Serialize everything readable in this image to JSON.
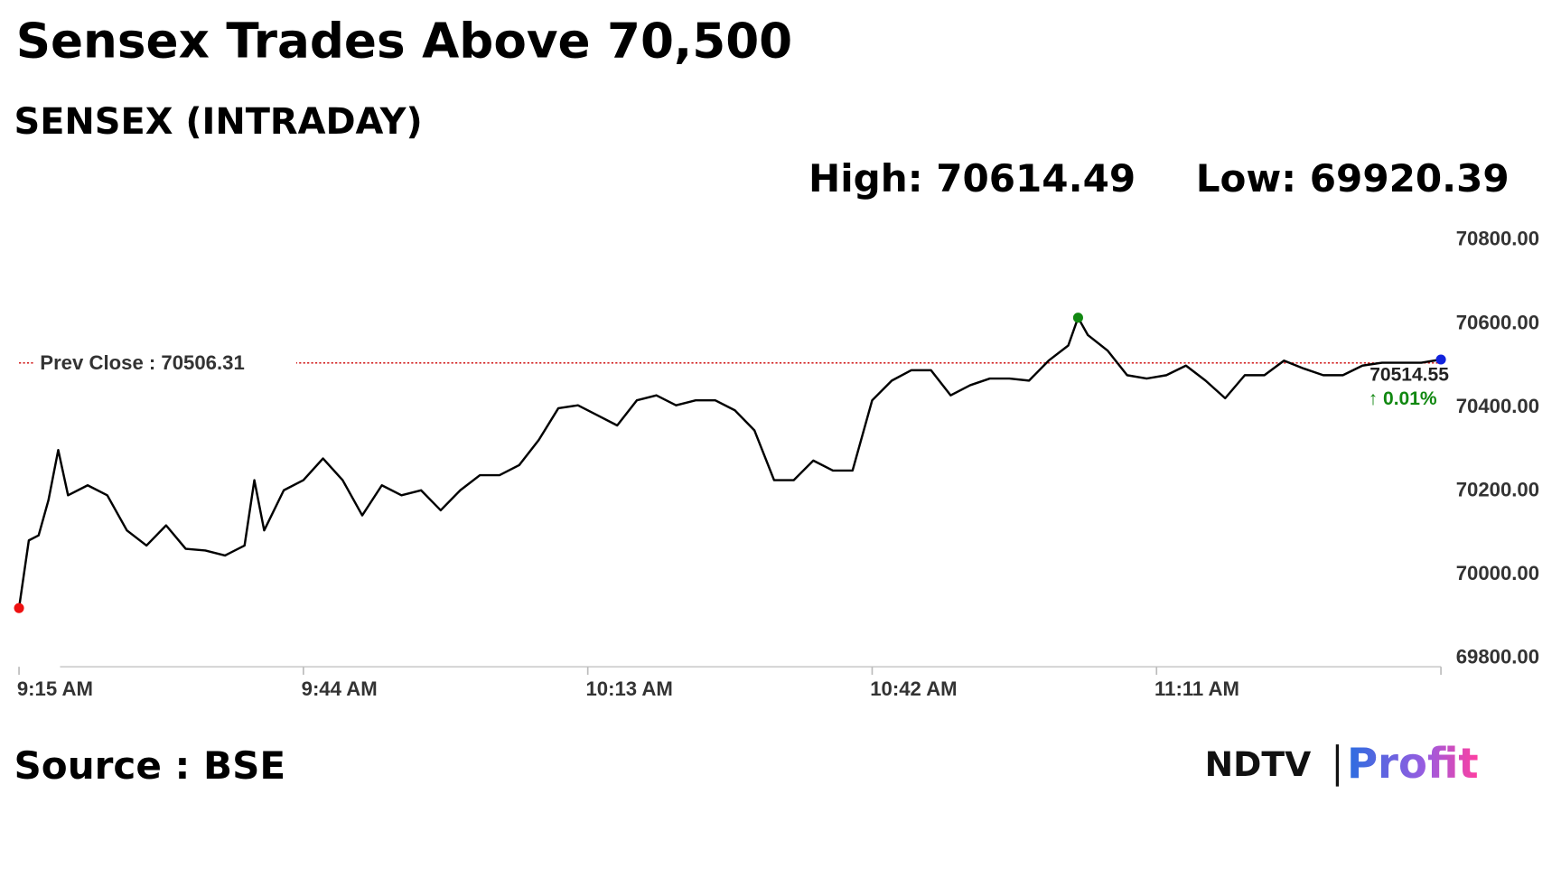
{
  "chart_data": {
    "type": "line",
    "title": "Sensex Trades Above 70,500",
    "subtitle": "SENSEX (INTRADAY)",
    "high_label": "High: 70614.49",
    "low_label": "Low: 69920.39",
    "prev_close": 70506.31,
    "prev_close_label": "Prev Close : 70506.31",
    "last_label": "70514.55",
    "change_label": "↑ 0.01%",
    "source": "Source : BSE",
    "logo": {
      "left": "NDTV",
      "right": "Profit"
    },
    "color": "#000000",
    "prev_close_color": "#cc0000",
    "change_color": "#118811",
    "marker_colors": {
      "low": "#ee1111",
      "high": "#118811",
      "last": "#1122dd"
    },
    "x": [
      "9:15 AM",
      "9:16 AM",
      "9:17 AM",
      "9:18 AM",
      "9:19 AM",
      "9:20 AM",
      "9:22 AM",
      "9:24 AM",
      "9:26 AM",
      "9:28 AM",
      "9:30 AM",
      "9:32 AM",
      "9:34 AM",
      "9:36 AM",
      "9:38 AM",
      "9:39 AM",
      "9:40 AM",
      "9:42 AM",
      "9:44 AM",
      "9:46 AM",
      "9:48 AM",
      "9:50 AM",
      "9:52 AM",
      "9:54 AM",
      "9:56 AM",
      "9:58 AM",
      "10:00 AM",
      "10:02 AM",
      "10:04 AM",
      "10:06 AM",
      "10:08 AM",
      "10:10 AM",
      "10:12 AM",
      "10:14 AM",
      "10:16 AM",
      "10:18 AM",
      "10:20 AM",
      "10:22 AM",
      "10:24 AM",
      "10:26 AM",
      "10:28 AM",
      "10:30 AM",
      "10:32 AM",
      "10:34 AM",
      "10:36 AM",
      "10:38 AM",
      "10:40 AM",
      "10:42 AM",
      "10:44 AM",
      "10:46 AM",
      "10:48 AM",
      "10:50 AM",
      "10:52 AM",
      "10:54 AM",
      "10:56 AM",
      "10:58 AM",
      "11:00 AM",
      "11:02 AM",
      "11:03 AM",
      "11:04 AM",
      "11:06 AM",
      "11:08 AM",
      "11:10 AM",
      "11:12 AM",
      "11:14 AM",
      "11:16 AM",
      "11:18 AM",
      "11:20 AM",
      "11:22 AM",
      "11:24 AM",
      "11:26 AM",
      "11:28 AM",
      "11:30 AM",
      "11:32 AM",
      "11:34 AM",
      "11:36 AM",
      "11:38 AM",
      "11:40 AM"
    ],
    "values": [
      69920.39,
      70082,
      70094,
      70178,
      70298,
      70190,
      70214,
      70190,
      70106,
      70070,
      70118,
      70062,
      70058,
      70046,
      70070,
      70226,
      70106,
      70202,
      70226,
      70278,
      70226,
      70142,
      70214,
      70190,
      70202,
      70154,
      70202,
      70238,
      70238,
      70262,
      70322,
      70398,
      70405,
      70381,
      70357,
      70417,
      70429,
      70405,
      70417,
      70417,
      70393,
      70345,
      70226,
      70226,
      70273,
      70249,
      70249,
      70417,
      70464,
      70489,
      70489,
      70429,
      70453,
      70469,
      70469,
      70464,
      70512,
      70548,
      70614.49,
      70573,
      70536,
      70477,
      70469,
      70477,
      70500,
      70464,
      70422,
      70477,
      70477,
      70512,
      70493,
      70477,
      70477,
      70500,
      70507,
      70507,
      70507,
      70514.55
    ],
    "xlim": [
      "9:15 AM",
      "11:40 AM"
    ],
    "xticks": [
      "9:15 AM",
      "9:44 AM",
      "10:13 AM",
      "10:42 AM",
      "11:11 AM"
    ],
    "ylim": [
      69780,
      70820
    ],
    "yticks": [
      {
        "value": 69800,
        "label": "69800.00"
      },
      {
        "value": 70000,
        "label": "70000.00"
      },
      {
        "value": 70200,
        "label": "70200.00"
      },
      {
        "value": 70400,
        "label": "70400.00"
      },
      {
        "value": 70600,
        "label": "70600.00"
      },
      {
        "value": 70800,
        "label": "70800.00"
      }
    ],
    "grid": false
  }
}
